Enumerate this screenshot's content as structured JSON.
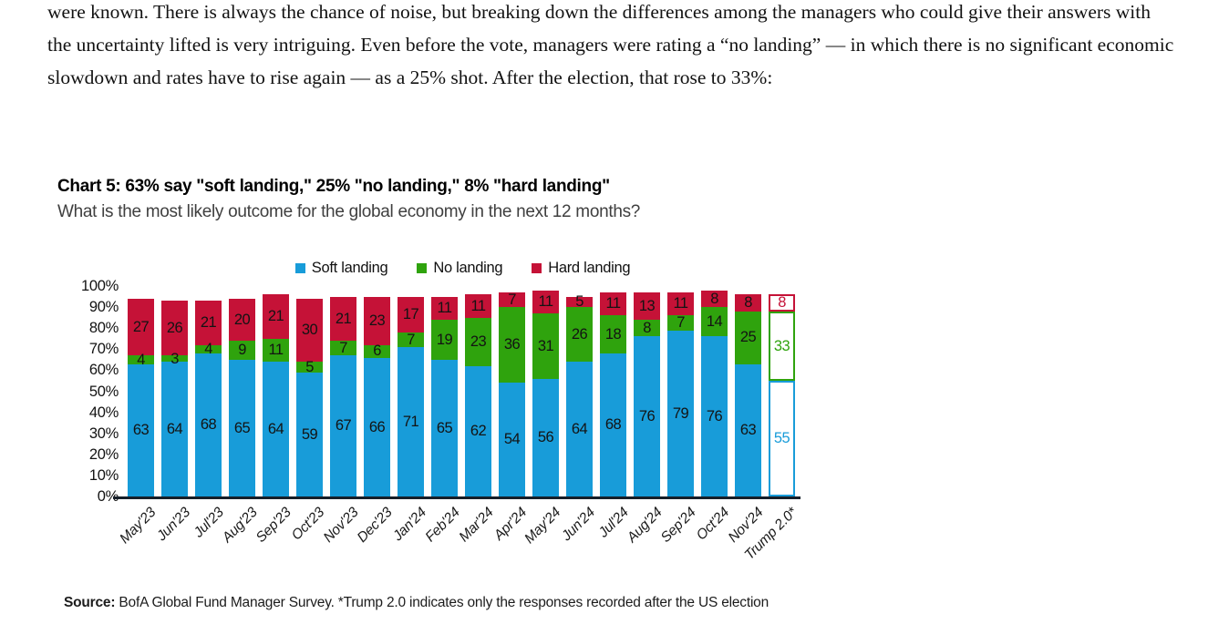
{
  "page": {
    "paragraph": "were known. There is always the chance of noise, but breaking down the differences among the managers who could give their answers with the uncertainty lifted is very intriguing. Even before the vote, managers were rating a “no landing” — in which there is no significant economic slowdown and rates have to rise again — as a 25% shot. After the election, that rose to 33%:"
  },
  "chart": {
    "title": "Chart 5: 63% say \"soft landing,\" 25% \"no landing,\" 8% \"hard landing\"",
    "subtitle": "What is the most likely outcome for the global economy in the next 12 months?",
    "source_label": "Source:",
    "source_text": "BofA Global Fund Manager Survey. *Trump 2.0 indicates only the responses recorded after the US election"
  },
  "chart_data": {
    "type": "bar",
    "stacked": true,
    "title": "Chart 5: 63% say \"soft landing,\" 25% \"no landing,\" 8% \"hard landing\"",
    "subtitle": "What is the most likely outcome for the global economy in the next 12 months?",
    "legend_position": "top",
    "grid": false,
    "ylim": [
      0,
      100
    ],
    "y_ticks": [
      "100%",
      "90%",
      "80%",
      "70%",
      "60%",
      "50%",
      "40%",
      "30%",
      "20%",
      "10%",
      "0%"
    ],
    "categories": [
      "May'23",
      "Jun'23",
      "Jul'23",
      "Aug'23",
      "Sep'23",
      "Oct'23",
      "Nov'23",
      "Dec'23",
      "Jan'24",
      "Feb'24",
      "Mar'24",
      "Apr'24",
      "May'24",
      "Jun'24",
      "Jul'24",
      "Aug'24",
      "Sep'24",
      "Oct'24",
      "Nov'24",
      "Trump 2.0*"
    ],
    "series": [
      {
        "name": "Soft landing",
        "color": "#189CD9",
        "values": [
          63,
          64,
          68,
          65,
          64,
          59,
          67,
          66,
          71,
          65,
          62,
          54,
          56,
          64,
          68,
          76,
          79,
          76,
          63,
          55
        ]
      },
      {
        "name": "No landing",
        "color": "#2FA30D",
        "values": [
          4,
          3,
          4,
          9,
          11,
          5,
          7,
          6,
          7,
          19,
          23,
          36,
          31,
          26,
          18,
          8,
          7,
          14,
          25,
          33
        ]
      },
      {
        "name": "Hard landing",
        "color": "#C51237",
        "values": [
          27,
          26,
          21,
          20,
          21,
          30,
          21,
          23,
          17,
          11,
          11,
          7,
          11,
          5,
          11,
          13,
          11,
          8,
          8,
          8
        ]
      }
    ],
    "outlined_category": "Trump 2.0*",
    "outlined_note": "Trump 2.0* bar drawn as hollow outlined boxes with colored value labels"
  }
}
